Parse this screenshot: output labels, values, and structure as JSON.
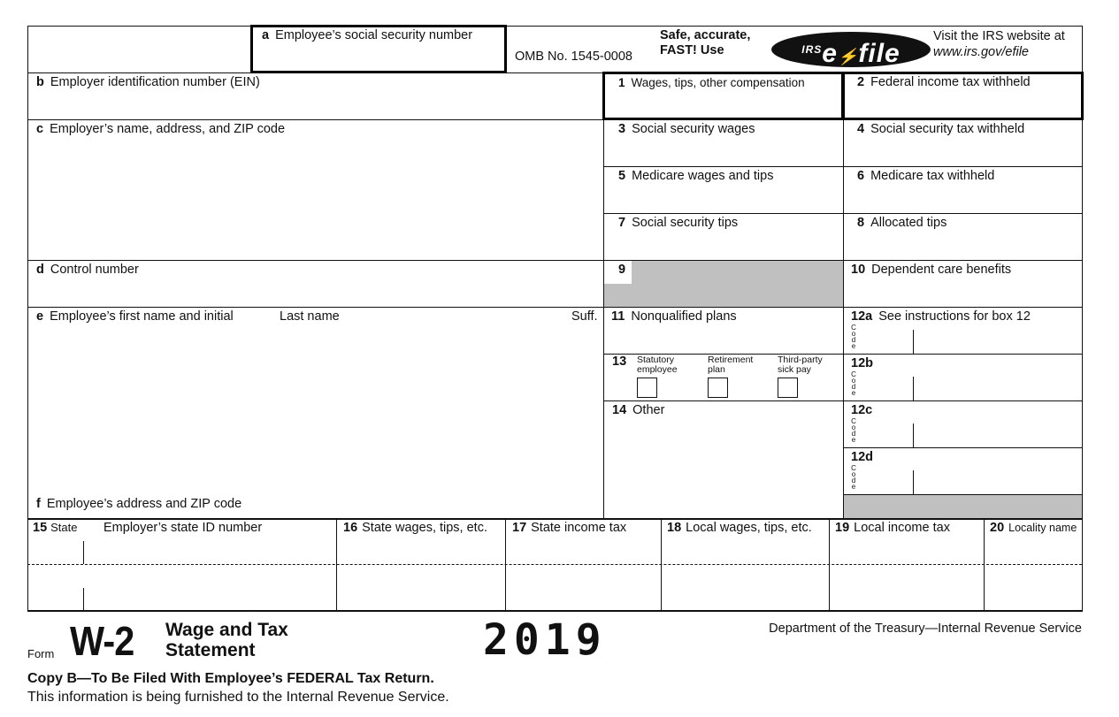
{
  "form": {
    "box_a": {
      "letter": "a",
      "label": "Employee’s social security number"
    },
    "omb": "OMB No. 1545-0008",
    "efile_promo_line1": "Safe, accurate,",
    "efile_promo_line2": "FAST! Use",
    "efile_logo": "IRS e-file",
    "visit_line1": "Visit the IRS website at",
    "visit_line2": "www.irs.gov/efile",
    "box_b": {
      "letter": "b",
      "label": "Employer identification number (EIN)"
    },
    "box_c": {
      "letter": "c",
      "label": "Employer’s name, address, and ZIP code"
    },
    "box_d": {
      "letter": "d",
      "label": "Control number"
    },
    "box_e": {
      "letter": "e",
      "label": "Employee’s first name and initial",
      "last": "Last name",
      "suff": "Suff."
    },
    "box_f": {
      "letter": "f",
      "label": "Employee’s address and ZIP code"
    },
    "boxes": [
      {
        "num": "1",
        "label": "Wages, tips, other compensation"
      },
      {
        "num": "2",
        "label": "Federal income tax withheld"
      },
      {
        "num": "3",
        "label": "Social security wages"
      },
      {
        "num": "4",
        "label": "Social security tax withheld"
      },
      {
        "num": "5",
        "label": "Medicare wages and tips"
      },
      {
        "num": "6",
        "label": "Medicare tax withheld"
      },
      {
        "num": "7",
        "label": "Social security tips"
      },
      {
        "num": "8",
        "label": "Allocated tips"
      },
      {
        "num": "9",
        "label": ""
      },
      {
        "num": "10",
        "label": "Dependent care benefits"
      },
      {
        "num": "11",
        "label": "Nonqualified plans"
      },
      {
        "num": "12a",
        "label": "See instructions for box 12"
      },
      {
        "num": "12b",
        "label": ""
      },
      {
        "num": "12c",
        "label": ""
      },
      {
        "num": "12d",
        "label": ""
      },
      {
        "num": "13",
        "label": ""
      },
      {
        "num": "14",
        "label": "Other"
      }
    ],
    "code_label": "Code",
    "box13": {
      "statutory": "Statutory employee",
      "retirement": "Retirement plan",
      "thirdparty": "Third-party sick pay"
    },
    "state_row": [
      {
        "num": "15",
        "label": "State"
      },
      {
        "num": "",
        "label": "Employer’s state ID number"
      },
      {
        "num": "16",
        "label": "State wages, tips, etc."
      },
      {
        "num": "17",
        "label": "State income tax"
      },
      {
        "num": "18",
        "label": "Local wages, tips, etc."
      },
      {
        "num": "19",
        "label": "Local income tax"
      },
      {
        "num": "20",
        "label": "Locality name"
      }
    ],
    "footer": {
      "form_word": "Form",
      "form_id": "W-2",
      "title_line1": "Wage and Tax",
      "title_line2": "Statement",
      "year": "2019",
      "department": "Department of the Treasury—Internal Revenue Service",
      "copy": "Copy B—To Be Filed With Employee’s FEDERAL Tax Return.",
      "info": "This information is being furnished to the Internal Revenue Service."
    }
  }
}
